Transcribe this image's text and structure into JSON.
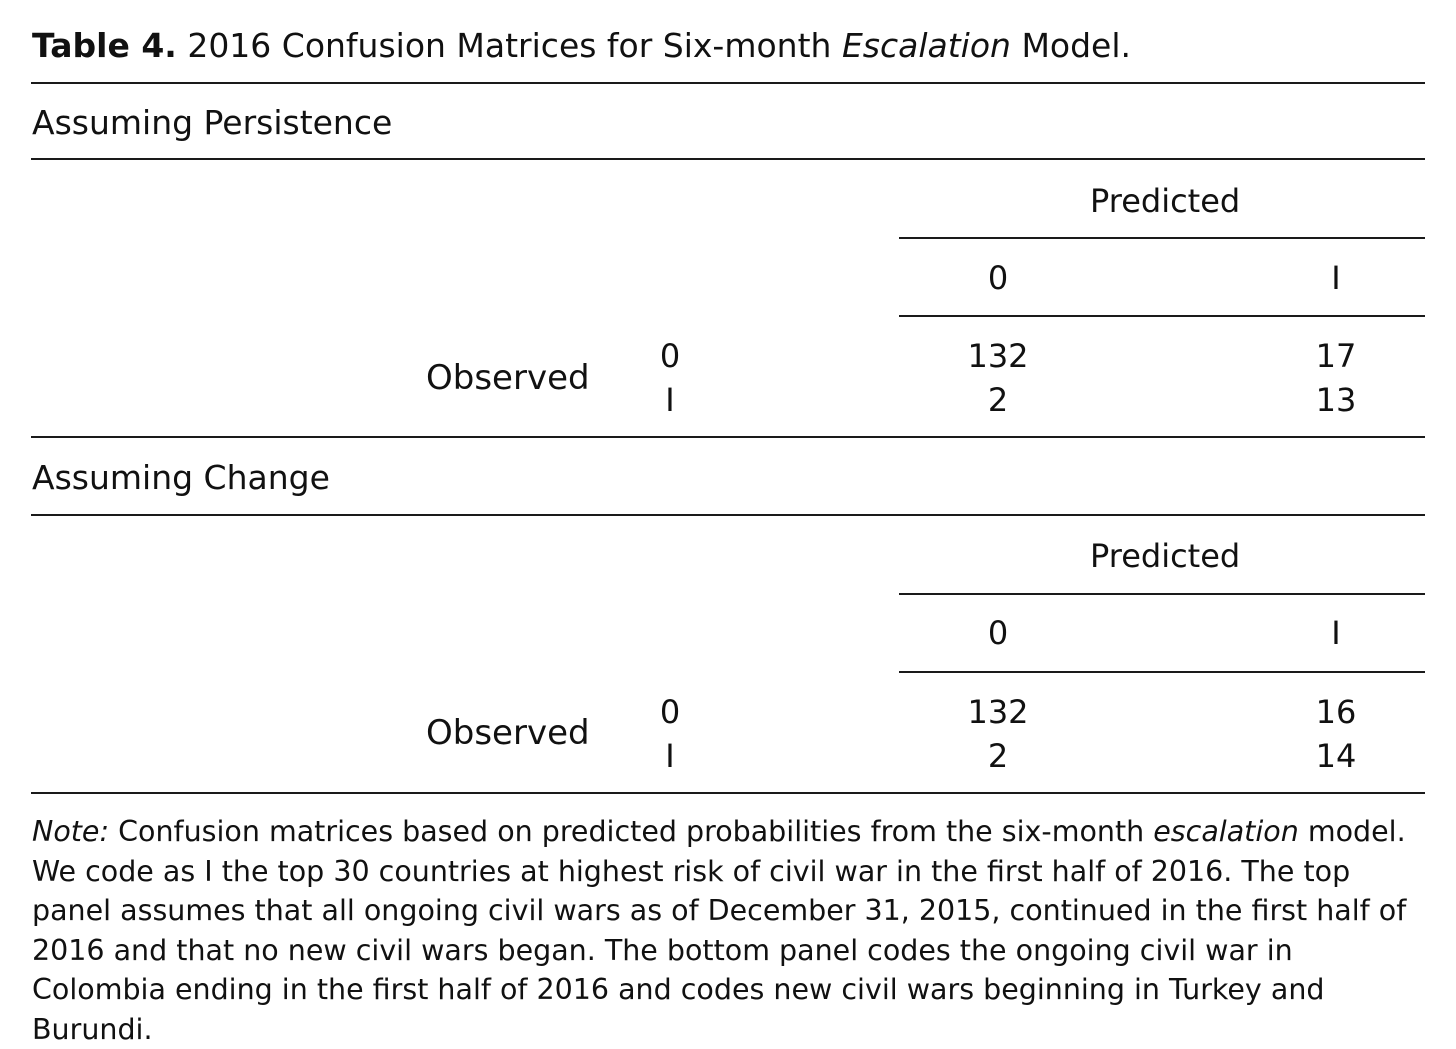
{
  "title": {
    "label": "Table 4.",
    "text_pre": " 2016 Confusion Matrices for Six-month ",
    "text_italic": "Escalation",
    "text_post": " Model."
  },
  "panels": [
    {
      "title": "Assuming Persistence",
      "predicted_header": "Predicted",
      "predicted_cols": [
        "0",
        "I"
      ],
      "observed_label": "Observed",
      "observed_rows": [
        "0",
        "I"
      ],
      "cells": [
        [
          "132",
          "17"
        ],
        [
          "2",
          "13"
        ]
      ]
    },
    {
      "title": "Assuming Change",
      "predicted_header": "Predicted",
      "predicted_cols": [
        "0",
        "I"
      ],
      "observed_label": "Observed",
      "observed_rows": [
        "0",
        "I"
      ],
      "cells": [
        [
          "132",
          "16"
        ],
        [
          "2",
          "14"
        ]
      ]
    }
  ],
  "note": {
    "label": "Note:",
    "text_pre": " Confusion matrices based on predicted probabilities from the six-month ",
    "text_italic": "escalation",
    "text_post": " model. We code as I the top 30 countries at highest risk of civil war in the first half of 2016. The top panel assumes that all ongoing civil wars as of December 31, 2015, continued in the first half of 2016 and that no new civil wars began. The bottom panel codes the ongoing civil war in Colombia ending in the first half of 2016 and codes new civil wars beginning in Turkey and Burundi."
  }
}
